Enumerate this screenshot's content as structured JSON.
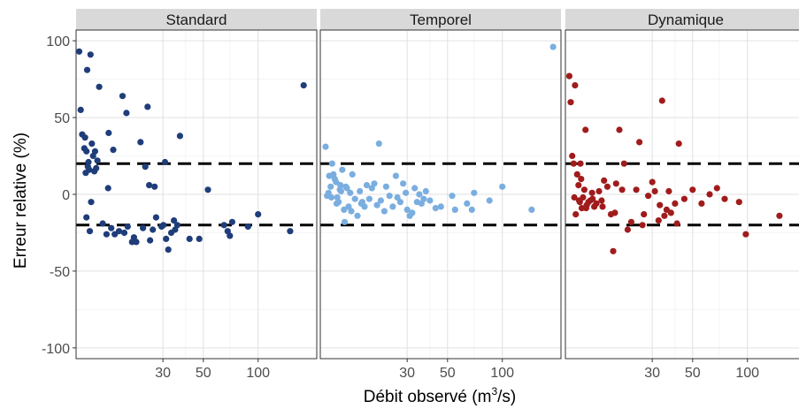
{
  "chart_data": {
    "type": "scatter",
    "xlabel": {
      "before": "Débit observé (m",
      "sup": "3",
      "after": "/s)"
    },
    "ylabel": "Erreur relative  (%)",
    "x_scale": "log",
    "xlim": [
      10,
      210
    ],
    "ylim": [
      -107,
      107
    ],
    "x_ticks": [
      {
        "value": 30,
        "label": "30"
      },
      {
        "value": 50,
        "label": "50"
      },
      {
        "value": 100,
        "label": "100"
      }
    ],
    "y_ticks": [
      {
        "value": 100,
        "label": "100"
      },
      {
        "value": 50,
        "label": "50"
      },
      {
        "value": 0,
        "label": "0"
      },
      {
        "value": -50,
        "label": "-50"
      },
      {
        "value": -100,
        "label": "-100"
      }
    ],
    "reference_lines": [
      20,
      -20
    ],
    "grid": true,
    "panels": [
      {
        "name": "Standard",
        "color": "#1f3d7a",
        "points": [
          [
            10.4,
            93
          ],
          [
            10.6,
            55
          ],
          [
            10.8,
            39
          ],
          [
            11.1,
            30
          ],
          [
            11.5,
            81
          ],
          [
            11.3,
            14
          ],
          [
            11.7,
            21
          ],
          [
            12,
            91
          ],
          [
            12.2,
            33
          ],
          [
            11.6,
            18
          ],
          [
            12.4,
            25
          ],
          [
            12.7,
            28
          ],
          [
            11.2,
            37
          ],
          [
            11.4,
            -15
          ],
          [
            11.9,
            -24
          ],
          [
            12.1,
            -5
          ],
          [
            13.4,
            70
          ],
          [
            14,
            -19
          ],
          [
            14.7,
            -26
          ],
          [
            15,
            4
          ],
          [
            15.1,
            40
          ],
          [
            15.6,
            -22
          ],
          [
            16,
            29
          ],
          [
            16.3,
            -26
          ],
          [
            17.2,
            -24
          ],
          [
            18,
            64
          ],
          [
            18.4,
            -25
          ],
          [
            18.9,
            53
          ],
          [
            19.2,
            -21
          ],
          [
            20.3,
            -31
          ],
          [
            20.8,
            -28
          ],
          [
            21.4,
            -31
          ],
          [
            22.6,
            34
          ],
          [
            23.3,
            -22
          ],
          [
            24,
            18
          ],
          [
            24.7,
            57
          ],
          [
            25.2,
            6
          ],
          [
            25.5,
            -30
          ],
          [
            26.4,
            -23
          ],
          [
            27,
            5
          ],
          [
            27.5,
            -15
          ],
          [
            29.5,
            -21
          ],
          [
            30.2,
            -20
          ],
          [
            30.8,
            21
          ],
          [
            31.2,
            -29
          ],
          [
            32.1,
            -36
          ],
          [
            33.3,
            -25
          ],
          [
            34.5,
            -17
          ],
          [
            35,
            -23
          ],
          [
            36,
            -20
          ],
          [
            37.2,
            38
          ],
          [
            42,
            -29
          ],
          [
            47.5,
            -29
          ],
          [
            53,
            3
          ],
          [
            65,
            -20
          ],
          [
            68,
            -24
          ],
          [
            70,
            -27
          ],
          [
            72,
            -18
          ],
          [
            88,
            -21
          ],
          [
            100,
            -13
          ],
          [
            150,
            -24
          ],
          [
            178,
            71
          ],
          [
            11.8,
            16
          ],
          [
            12.6,
            15
          ],
          [
            13.1,
            22
          ],
          [
            12.9,
            17
          ],
          [
            11.4,
            28
          ]
        ]
      },
      {
        "name": "Temporel",
        "color": "#7aaee0",
        "points": [
          [
            10.7,
            31
          ],
          [
            10.9,
            -1
          ],
          [
            11.2,
            12
          ],
          [
            11.4,
            5
          ],
          [
            11.6,
            20
          ],
          [
            11.8,
            13
          ],
          [
            12,
            10
          ],
          [
            12.2,
            8
          ],
          [
            12.4,
            -2
          ],
          [
            12.6,
            -5
          ],
          [
            12.8,
            3
          ],
          [
            13,
            2
          ],
          [
            13.2,
            16
          ],
          [
            13.5,
            -10
          ],
          [
            13.8,
            5
          ],
          [
            14,
            4
          ],
          [
            14.3,
            -8
          ],
          [
            14.6,
            1
          ],
          [
            15,
            13
          ],
          [
            15.5,
            -3
          ],
          [
            16,
            -14
          ],
          [
            16.5,
            2
          ],
          [
            17,
            -5
          ],
          [
            17.5,
            -8
          ],
          [
            18,
            6
          ],
          [
            18.6,
            -3
          ],
          [
            19.2,
            4
          ],
          [
            19.8,
            7
          ],
          [
            20.5,
            -7
          ],
          [
            21,
            33
          ],
          [
            21.5,
            -4
          ],
          [
            22.5,
            -11
          ],
          [
            23,
            5
          ],
          [
            24,
            -1
          ],
          [
            25,
            -8
          ],
          [
            26,
            12
          ],
          [
            26.5,
            -2
          ],
          [
            27.5,
            -5
          ],
          [
            28.5,
            7
          ],
          [
            29.5,
            1
          ],
          [
            30,
            -10
          ],
          [
            31,
            -14
          ],
          [
            32,
            -12
          ],
          [
            33,
            4
          ],
          [
            34,
            -5
          ],
          [
            35,
            0
          ],
          [
            36,
            -6
          ],
          [
            37,
            -3
          ],
          [
            38,
            2
          ],
          [
            40,
            -4
          ],
          [
            43,
            -9
          ],
          [
            46,
            -8
          ],
          [
            53,
            -1
          ],
          [
            55,
            -10
          ],
          [
            64,
            -6
          ],
          [
            68,
            -10
          ],
          [
            70,
            1
          ],
          [
            85,
            -4
          ],
          [
            100,
            5
          ],
          [
            145,
            -10
          ],
          [
            190,
            96
          ],
          [
            11.5,
            -2
          ],
          [
            12.3,
            -6
          ],
          [
            13.6,
            -18
          ],
          [
            14.8,
            -11
          ],
          [
            11.1,
            1
          ],
          [
            12.9,
            6
          ],
          [
            16.8,
            -6
          ]
        ]
      },
      {
        "name": "Dynamique",
        "color": "#a01c1c",
        "points": [
          [
            10.5,
            77
          ],
          [
            10.7,
            60
          ],
          [
            10.9,
            25
          ],
          [
            11.1,
            20
          ],
          [
            11.3,
            71
          ],
          [
            11.4,
            -13
          ],
          [
            11.6,
            13
          ],
          [
            11.8,
            6
          ],
          [
            12,
            -5
          ],
          [
            12.1,
            20
          ],
          [
            12.3,
            -9
          ],
          [
            12.5,
            -2
          ],
          [
            12.7,
            3
          ],
          [
            12.9,
            42
          ],
          [
            13.1,
            -7
          ],
          [
            13.4,
            -5
          ],
          [
            13.7,
            -4
          ],
          [
            14,
            1
          ],
          [
            14.4,
            -8
          ],
          [
            14.8,
            -6
          ],
          [
            15.3,
            2
          ],
          [
            15.8,
            -4
          ],
          [
            16.3,
            9
          ],
          [
            17,
            5
          ],
          [
            17.8,
            -13
          ],
          [
            18.3,
            -37
          ],
          [
            19,
            7
          ],
          [
            19.8,
            42
          ],
          [
            20.5,
            3
          ],
          [
            21,
            20
          ],
          [
            22,
            -23
          ],
          [
            23,
            -18
          ],
          [
            24.5,
            3
          ],
          [
            25.5,
            34
          ],
          [
            26.5,
            -20
          ],
          [
            27,
            -13
          ],
          [
            28.5,
            -1
          ],
          [
            30,
            8
          ],
          [
            31,
            2
          ],
          [
            32.5,
            -17
          ],
          [
            33,
            -7
          ],
          [
            34,
            61
          ],
          [
            35,
            -14
          ],
          [
            36,
            -10
          ],
          [
            37,
            2
          ],
          [
            38,
            -12
          ],
          [
            40,
            -6
          ],
          [
            41,
            -19
          ],
          [
            42,
            33
          ],
          [
            45,
            -3
          ],
          [
            50,
            3
          ],
          [
            56,
            -6
          ],
          [
            62,
            0
          ],
          [
            68,
            4
          ],
          [
            75,
            -3
          ],
          [
            90,
            -5
          ],
          [
            98,
            -26
          ],
          [
            150,
            -14
          ],
          [
            205,
            1
          ],
          [
            11.2,
            -2
          ],
          [
            11.9,
            -4
          ],
          [
            13,
            -9
          ],
          [
            14.1,
            -3
          ],
          [
            16,
            -8
          ],
          [
            12.2,
            10
          ],
          [
            18.7,
            -12
          ]
        ]
      }
    ]
  }
}
